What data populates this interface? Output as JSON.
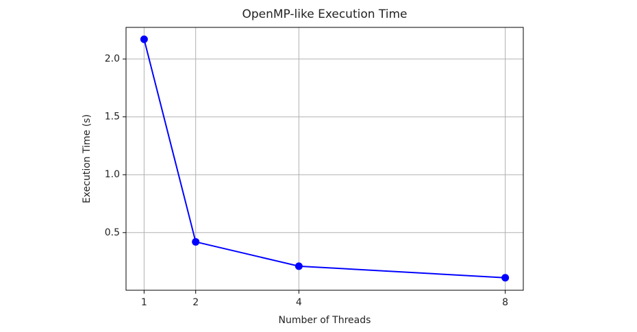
{
  "chart_data": {
    "type": "line",
    "title": "OpenMP-like Execution Time",
    "x_label": "Number of Threads",
    "y_label": "Execution Time (s)",
    "x": [
      1,
      2,
      4,
      8
    ],
    "series": [
      {
        "name": "Execution Time",
        "color": "#0000ff",
        "values": [
          2.17,
          0.42,
          0.21,
          0.11
        ]
      }
    ],
    "xlim": [
      0.65,
      8.35
    ],
    "xticks": [
      1,
      2,
      4,
      8
    ],
    "ylim": [
      0.002,
      2.273
    ],
    "yticks": [
      {
        "value": 0.5,
        "label": "0.5"
      },
      {
        "value": 1.0,
        "label": "1.0"
      },
      {
        "value": 1.5,
        "label": "1.5"
      },
      {
        "value": 2.0,
        "label": "2.0"
      }
    ],
    "grid": true,
    "markers": true
  }
}
